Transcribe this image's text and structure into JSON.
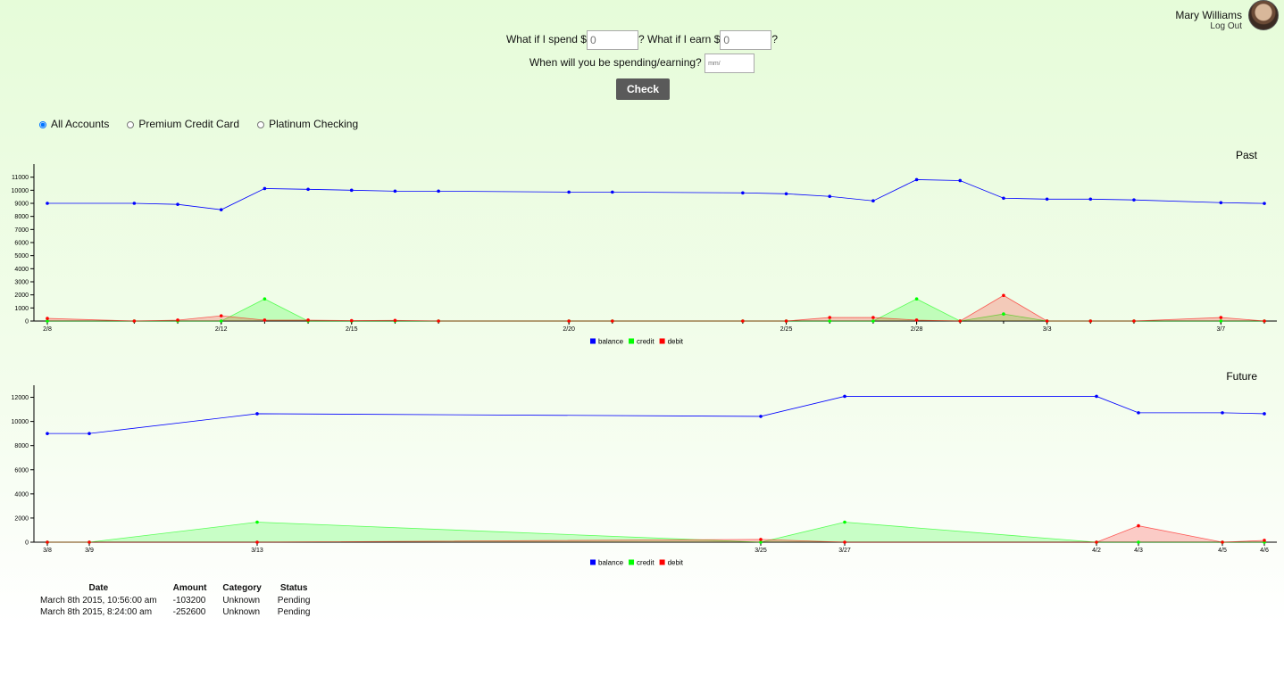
{
  "user": {
    "name": "Mary Williams",
    "logout": "Log Out"
  },
  "form": {
    "spend_label": "What if I spend $",
    "spend_placeholder": "0",
    "earn_label": "? What if I earn $",
    "earn_placeholder": "0",
    "earn_suffix": "?",
    "date_label": "When will you be spending/earning?",
    "date_placeholder": "mm/",
    "button": "Check"
  },
  "accounts": {
    "options": [
      "All Accounts",
      "Premium Credit Card",
      "Platinum Checking"
    ],
    "selected": 0
  },
  "chart_data": [
    {
      "type": "line",
      "title": "Past",
      "x": [
        "2/8",
        "2/10",
        "2/11",
        "2/12",
        "2/13",
        "2/14",
        "2/15",
        "2/16",
        "2/17",
        "2/20",
        "2/21",
        "2/24",
        "2/25",
        "2/26",
        "2/27",
        "2/28",
        "3/1",
        "3/2",
        "3/3",
        "3/4",
        "3/5",
        "3/7",
        "3/8"
      ],
      "xticks": [
        "2/8",
        "2/12",
        "2/15",
        "2/20",
        "2/25",
        "2/28",
        "3/3",
        "3/7"
      ],
      "ylim": [
        0,
        12000
      ],
      "yticks": [
        0,
        1000,
        2000,
        3000,
        4000,
        5000,
        6000,
        7000,
        8000,
        9000,
        10000,
        11000
      ],
      "legend": "bottom",
      "series": [
        {
          "name": "balance",
          "color": "#0000ff",
          "filled": false,
          "values": [
            9000,
            9000,
            8920,
            8510,
            10130,
            10070,
            10000,
            9930,
            9930,
            9860,
            9860,
            9800,
            9730,
            9530,
            9190,
            10810,
            10740,
            9390,
            9320,
            9320,
            9260,
            9050,
            8990
          ]
        },
        {
          "name": "credit",
          "color": "#00ff00",
          "filled": true,
          "values": [
            0,
            0,
            0,
            0,
            1690,
            0,
            0,
            0,
            0,
            0,
            0,
            0,
            0,
            0,
            0,
            1690,
            0,
            540,
            0,
            0,
            0,
            0,
            0
          ]
        },
        {
          "name": "debit",
          "color": "#ff0000",
          "filled": true,
          "values": [
            200,
            0,
            70,
            400,
            70,
            70,
            30,
            50,
            0,
            0,
            0,
            0,
            0,
            270,
            270,
            70,
            0,
            1960,
            0,
            0,
            0,
            270,
            0
          ]
        }
      ]
    },
    {
      "type": "line",
      "title": "Future",
      "x": [
        "3/8",
        "3/9",
        "3/13",
        "3/25",
        "3/27",
        "4/2",
        "4/3",
        "4/5",
        "4/6"
      ],
      "xticks": [
        "3/8",
        "3/9",
        "3/13",
        "3/25",
        "3/27",
        "4/2",
        "4/3",
        "4/5",
        "4/6"
      ],
      "ylim": [
        0,
        13000
      ],
      "yticks": [
        0,
        2000,
        4000,
        6000,
        8000,
        10000,
        12000
      ],
      "legend": "bottom",
      "series": [
        {
          "name": "balance",
          "color": "#0000ff",
          "filled": false,
          "values": [
            9000,
            9000,
            10640,
            10420,
            12080,
            12080,
            10720,
            10720,
            10640
          ]
        },
        {
          "name": "credit",
          "color": "#00ff00",
          "filled": true,
          "values": [
            0,
            0,
            1660,
            0,
            1660,
            0,
            0,
            0,
            0
          ]
        },
        {
          "name": "debit",
          "color": "#ff0000",
          "filled": true,
          "values": [
            0,
            0,
            0,
            230,
            0,
            0,
            1360,
            0,
            150
          ]
        }
      ]
    }
  ],
  "table": {
    "headers": [
      "Date",
      "Amount",
      "Category",
      "Status"
    ],
    "rows": [
      [
        "March 8th 2015, 10:56:00 am",
        -103200,
        "Unknown",
        "Pending"
      ],
      [
        "March 8th 2015, 8:24:00 am",
        -252600,
        "Unknown",
        "Pending"
      ]
    ]
  }
}
